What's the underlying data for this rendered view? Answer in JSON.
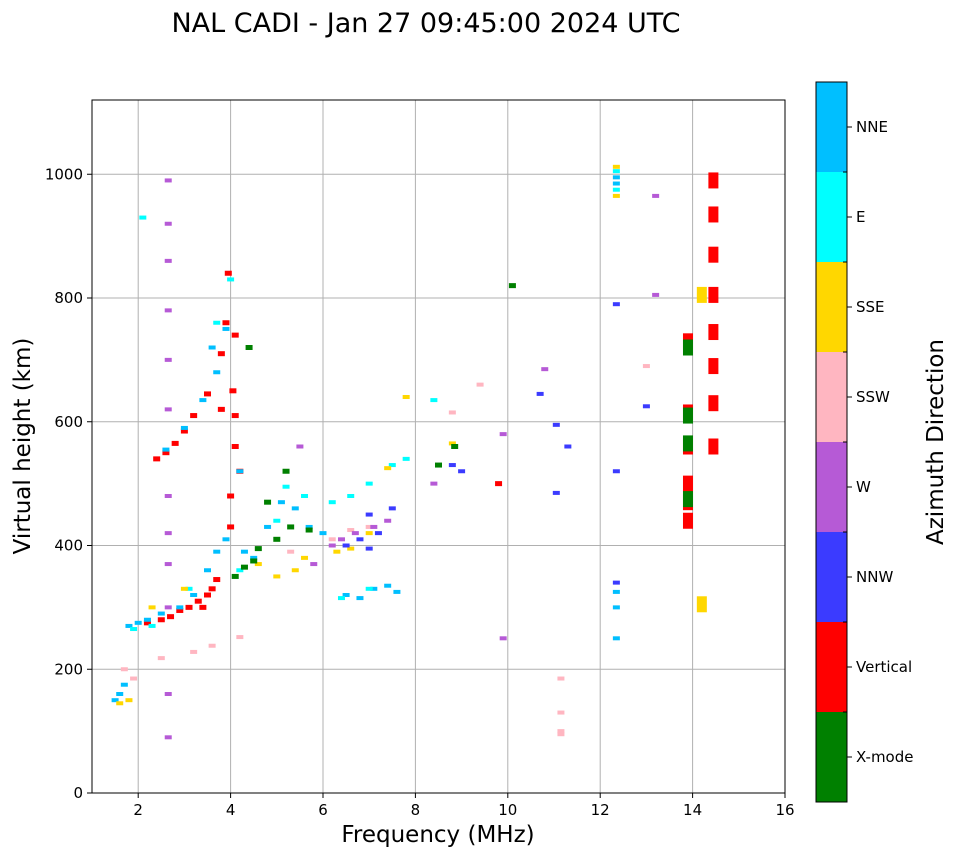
{
  "chart_data": {
    "type": "scatter",
    "title": "NAL CADI - Jan 27 09:45:00 2024 UTC",
    "xlabel": "Frequency (MHz)",
    "ylabel": "Virtual height (km)",
    "xlim": [
      1,
      16
    ],
    "ylim": [
      0,
      1120
    ],
    "xticks": [
      2,
      4,
      6,
      8,
      10,
      12,
      14,
      16
    ],
    "yticks": [
      0,
      200,
      400,
      600,
      800,
      1000
    ],
    "grid": true,
    "colorbar": {
      "label": "Azimuth Direction",
      "categories": [
        {
          "name": "X-mode",
          "color": "#008000"
        },
        {
          "name": "Vertical",
          "color": "#ff0000"
        },
        {
          "name": "NNW",
          "color": "#3b3bff"
        },
        {
          "name": "W",
          "color": "#b65ad6"
        },
        {
          "name": "SSW",
          "color": "#ffb6c1"
        },
        {
          "name": "SSE",
          "color": "#ffd700"
        },
        {
          "name": "E",
          "color": "#00ffff"
        },
        {
          "name": "NNE",
          "color": "#00bfff"
        }
      ]
    },
    "series": [
      {
        "name": "Vertical",
        "points": [
          [
            2.4,
            540
          ],
          [
            2.6,
            550
          ],
          [
            2.8,
            565
          ],
          [
            3.0,
            585
          ],
          [
            3.2,
            610
          ],
          [
            3.5,
            645
          ],
          [
            3.8,
            710
          ],
          [
            3.9,
            760
          ],
          [
            3.95,
            840
          ],
          [
            2.7,
            285
          ],
          [
            2.9,
            295
          ],
          [
            3.1,
            300
          ],
          [
            3.3,
            310
          ],
          [
            3.5,
            320
          ],
          [
            3.6,
            330
          ],
          [
            3.7,
            345
          ],
          [
            4.0,
            480
          ],
          [
            4.0,
            430
          ],
          [
            4.05,
            650
          ],
          [
            4.1,
            610
          ],
          [
            4.1,
            560
          ],
          [
            4.2,
            520
          ],
          [
            3.8,
            620
          ],
          [
            4.1,
            740
          ],
          [
            2.2,
            275
          ],
          [
            2.5,
            280
          ],
          [
            3.4,
            300
          ],
          [
            13.9,
            730
          ],
          [
            13.9,
            615
          ],
          [
            13.9,
            560
          ],
          [
            13.9,
            500
          ],
          [
            13.9,
            470
          ],
          [
            13.9,
            440
          ],
          [
            14.45,
            990
          ],
          [
            14.45,
            935
          ],
          [
            14.45,
            870
          ],
          [
            14.45,
            805
          ],
          [
            14.45,
            745
          ],
          [
            14.45,
            690
          ],
          [
            14.45,
            630
          ],
          [
            14.45,
            560
          ],
          [
            9.8,
            500
          ]
        ]
      },
      {
        "name": "NNE",
        "points": [
          [
            1.5,
            150
          ],
          [
            1.6,
            160
          ],
          [
            1.7,
            175
          ],
          [
            1.8,
            270
          ],
          [
            2.0,
            275
          ],
          [
            2.2,
            280
          ],
          [
            2.5,
            290
          ],
          [
            2.9,
            300
          ],
          [
            3.2,
            320
          ],
          [
            3.5,
            360
          ],
          [
            3.7,
            390
          ],
          [
            3.9,
            410
          ],
          [
            4.3,
            390
          ],
          [
            4.5,
            380
          ],
          [
            4.8,
            430
          ],
          [
            5.1,
            470
          ],
          [
            5.4,
            460
          ],
          [
            5.7,
            430
          ],
          [
            6.0,
            420
          ],
          [
            2.6,
            555
          ],
          [
            3.0,
            590
          ],
          [
            3.4,
            635
          ],
          [
            3.7,
            680
          ],
          [
            3.9,
            750
          ],
          [
            6.5,
            320
          ],
          [
            6.8,
            315
          ],
          [
            7.1,
            330
          ],
          [
            7.4,
            335
          ],
          [
            7.6,
            325
          ],
          [
            12.35,
            325
          ],
          [
            12.35,
            300
          ],
          [
            12.35,
            250
          ],
          [
            12.35,
            995
          ],
          [
            12.35,
            985
          ],
          [
            3.6,
            720
          ],
          [
            4.2,
            520
          ]
        ]
      },
      {
        "name": "E",
        "points": [
          [
            1.9,
            265
          ],
          [
            2.3,
            270
          ],
          [
            3.1,
            330
          ],
          [
            4.2,
            360
          ],
          [
            5.2,
            495
          ],
          [
            5.6,
            480
          ],
          [
            6.2,
            470
          ],
          [
            6.6,
            480
          ],
          [
            7.0,
            500
          ],
          [
            7.5,
            530
          ],
          [
            6.4,
            315
          ],
          [
            7.0,
            330
          ],
          [
            8.4,
            635
          ],
          [
            12.35,
            1005
          ],
          [
            12.35,
            975
          ],
          [
            4.0,
            830
          ],
          [
            3.7,
            760
          ],
          [
            2.1,
            930
          ],
          [
            7.8,
            540
          ],
          [
            5.0,
            440
          ]
        ]
      },
      {
        "name": "SSE",
        "points": [
          [
            1.6,
            145
          ],
          [
            1.8,
            150
          ],
          [
            2.3,
            300
          ],
          [
            3.0,
            330
          ],
          [
            4.6,
            370
          ],
          [
            5.0,
            350
          ],
          [
            5.4,
            360
          ],
          [
            6.3,
            390
          ],
          [
            6.6,
            395
          ],
          [
            7.0,
            420
          ],
          [
            7.4,
            525
          ],
          [
            8.8,
            565
          ],
          [
            12.35,
            1012
          ],
          [
            12.35,
            965
          ],
          [
            14.2,
            305
          ],
          [
            14.2,
            805
          ],
          [
            7.8,
            640
          ],
          [
            5.6,
            380
          ]
        ]
      },
      {
        "name": "SSW",
        "points": [
          [
            1.7,
            200
          ],
          [
            1.9,
            185
          ],
          [
            2.5,
            218
          ],
          [
            3.2,
            228
          ],
          [
            3.6,
            238
          ],
          [
            4.2,
            252
          ],
          [
            5.3,
            390
          ],
          [
            6.2,
            410
          ],
          [
            6.6,
            425
          ],
          [
            7.0,
            430
          ],
          [
            13.0,
            690
          ],
          [
            11.15,
            185
          ],
          [
            11.15,
            130
          ],
          [
            11.15,
            100
          ],
          [
            11.15,
            95
          ],
          [
            9.4,
            660
          ],
          [
            8.8,
            615
          ]
        ]
      },
      {
        "name": "W",
        "points": [
          [
            2.65,
            990
          ],
          [
            2.65,
            920
          ],
          [
            2.65,
            860
          ],
          [
            2.65,
            780
          ],
          [
            2.65,
            700
          ],
          [
            2.65,
            620
          ],
          [
            2.65,
            480
          ],
          [
            2.65,
            420
          ],
          [
            2.65,
            370
          ],
          [
            2.65,
            300
          ],
          [
            2.65,
            160
          ],
          [
            2.65,
            90
          ],
          [
            5.8,
            370
          ],
          [
            6.2,
            400
          ],
          [
            6.4,
            410
          ],
          [
            6.7,
            420
          ],
          [
            7.1,
            430
          ],
          [
            7.4,
            440
          ],
          [
            13.2,
            965
          ],
          [
            13.2,
            805
          ],
          [
            9.9,
            250
          ],
          [
            10.8,
            685
          ],
          [
            8.4,
            500
          ],
          [
            9.9,
            580
          ],
          [
            5.5,
            560
          ]
        ]
      },
      {
        "name": "NNW",
        "points": [
          [
            6.5,
            400
          ],
          [
            6.8,
            410
          ],
          [
            7.0,
            395
          ],
          [
            7.2,
            420
          ],
          [
            7.5,
            460
          ],
          [
            12.35,
            790
          ],
          [
            12.35,
            520
          ],
          [
            12.35,
            340
          ],
          [
            13.0,
            625
          ],
          [
            10.7,
            645
          ],
          [
            11.05,
            595
          ],
          [
            11.05,
            485
          ],
          [
            11.3,
            560
          ],
          [
            8.8,
            530
          ],
          [
            9.0,
            520
          ],
          [
            7.0,
            450
          ]
        ]
      },
      {
        "name": "X-mode",
        "points": [
          [
            4.1,
            350
          ],
          [
            4.3,
            365
          ],
          [
            4.5,
            375
          ],
          [
            4.6,
            395
          ],
          [
            5.0,
            410
          ],
          [
            5.3,
            430
          ],
          [
            5.7,
            425
          ],
          [
            4.4,
            720
          ],
          [
            10.1,
            820
          ],
          [
            8.5,
            530
          ],
          [
            8.85,
            560
          ],
          [
            13.9,
            720
          ],
          [
            13.9,
            610
          ],
          [
            13.9,
            565
          ],
          [
            13.9,
            475
          ],
          [
            4.8,
            470
          ],
          [
            5.2,
            520
          ]
        ]
      }
    ]
  }
}
